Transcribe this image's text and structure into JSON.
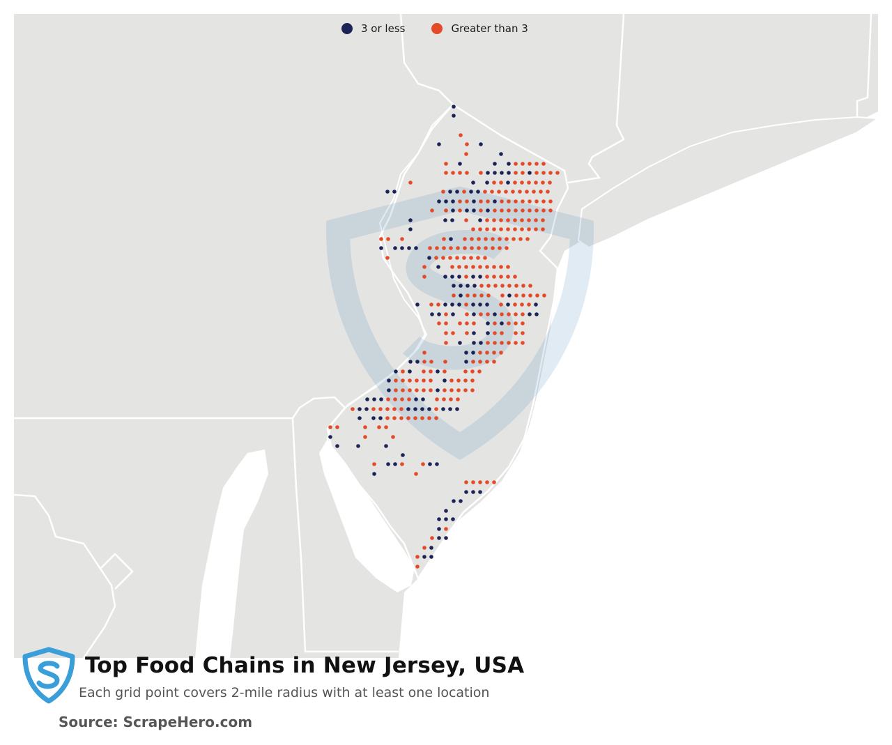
{
  "legend": {
    "low_label": "3 or less",
    "high_label": "Greater than 3"
  },
  "colors": {
    "low": "#1c2357",
    "high": "#e54a28",
    "land": "#e4e4e3",
    "water": "#ffffff",
    "border": "#ffffff",
    "logo": "#3a9fd8"
  },
  "footer": {
    "title": "Top Food Chains in New Jersey, USA",
    "subtitle": "Each grid point covers 2-mile radius with at least one location",
    "source": "Source: ScrapeHero.com"
  },
  "watermark": "scrapehero-shield-icon"
}
